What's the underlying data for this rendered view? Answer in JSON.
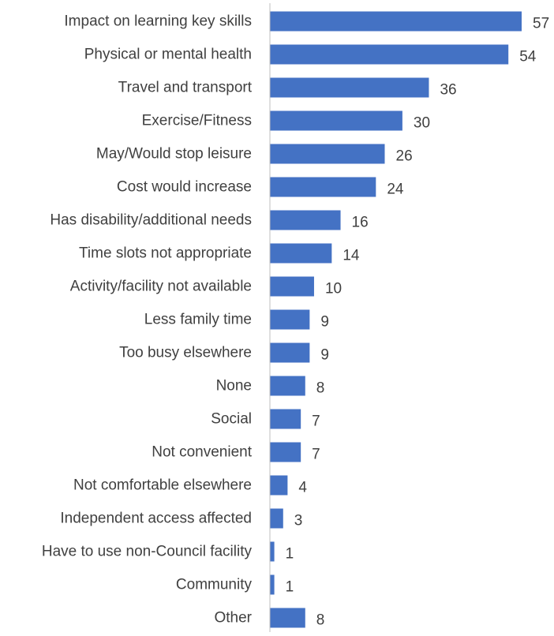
{
  "chart_data": {
    "type": "bar",
    "orientation": "horizontal",
    "title": "",
    "xlabel": "",
    "ylabel": "",
    "grid": false,
    "legend": "none",
    "bar_color": "#4472C4",
    "text_color": "#404040",
    "axis_color": "#BFBFBF",
    "xlim": [
      0,
      60
    ],
    "categories": [
      "Impact on learning key skills",
      "Physical or mental health",
      "Travel and transport",
      "Exercise/Fitness",
      "May/Would stop leisure",
      "Cost would increase",
      "Has disability/additional needs",
      "Time slots not appropriate",
      "Activity/facility not available",
      "Less family time",
      "Too busy elsewhere",
      "None",
      "Social",
      "Not convenient",
      "Not comfortable elsewhere",
      "Independent access affected",
      "Have to use non-Council facility",
      "Community",
      "Other"
    ],
    "values": [
      57,
      54,
      36,
      30,
      26,
      24,
      16,
      14,
      10,
      9,
      9,
      8,
      7,
      7,
      4,
      3,
      1,
      1,
      8
    ]
  }
}
